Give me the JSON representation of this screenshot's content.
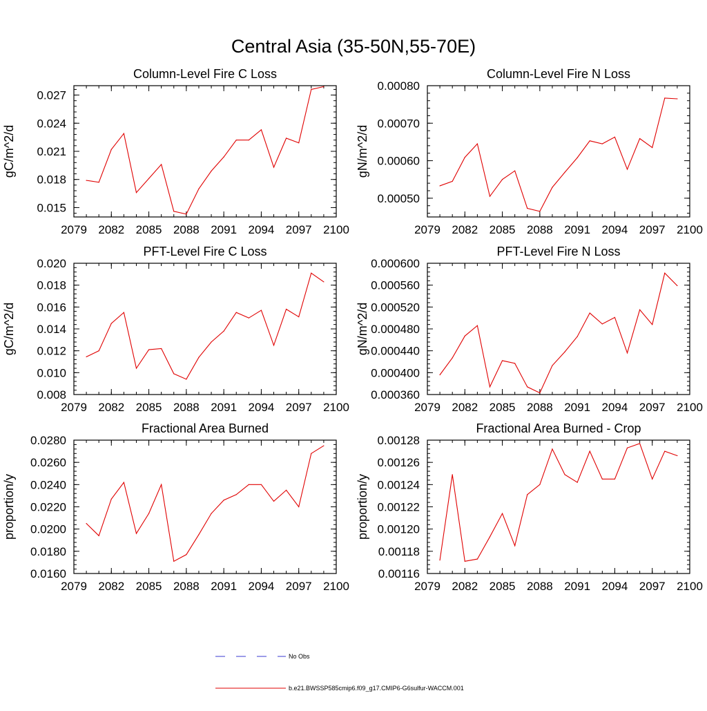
{
  "figure": {
    "title": "Central Asia (35-50N,55-70E)"
  },
  "legend": {
    "entries": [
      {
        "label": "No Obs",
        "color": "#3a3ad0",
        "dash": "dashed"
      },
      {
        "label": "b.e21.BWSSP585cmip6.f09_g17.CMIP6-G6sulfur-WACCM.001",
        "color": "#e00000",
        "dash": "solid"
      }
    ]
  },
  "chart_data": [
    {
      "type": "line",
      "title": "Column-Level Fire C Loss",
      "ylabel": "gC/m^2/d",
      "xlim": [
        2079,
        2100
      ],
      "ylim": [
        0.014,
        0.028
      ],
      "xticks": [
        "2079",
        "2082",
        "2085",
        "2088",
        "2091",
        "2094",
        "2097",
        "2100"
      ],
      "yticks": [
        "0.015",
        "0.018",
        "0.021",
        "0.024",
        "0.027"
      ],
      "x": [
        2080,
        2081,
        2082,
        2083,
        2084,
        2085,
        2086,
        2087,
        2088,
        2089,
        2090,
        2091,
        2092,
        2093,
        2094,
        2095,
        2096,
        2097,
        2098,
        2099
      ],
      "series": [
        {
          "color": "#e00000",
          "values": [
            0.0179,
            0.0177,
            0.0212,
            0.0229,
            0.0166,
            0.0181,
            0.0196,
            0.0146,
            0.0143,
            0.017,
            0.0189,
            0.0204,
            0.0222,
            0.0222,
            0.0233,
            0.0193,
            0.0224,
            0.0219,
            0.0276,
            0.0279
          ]
        }
      ]
    },
    {
      "type": "line",
      "title": "Column-Level Fire N Loss",
      "ylabel": "gN/m^2/d",
      "xlim": [
        2079,
        2100
      ],
      "ylim": [
        0.00045,
        0.0008
      ],
      "xticks": [
        "2079",
        "2082",
        "2085",
        "2088",
        "2091",
        "2094",
        "2097",
        "2100"
      ],
      "yticks": [
        "0.00050",
        "0.00060",
        "0.00070",
        "0.00080"
      ],
      "x": [
        2080,
        2081,
        2082,
        2083,
        2084,
        2085,
        2086,
        2087,
        2088,
        2089,
        2090,
        2091,
        2092,
        2093,
        2094,
        2095,
        2096,
        2097,
        2098,
        2099
      ],
      "series": [
        {
          "color": "#e00000",
          "values": [
            0.000533,
            0.000545,
            0.000609,
            0.000645,
            0.000505,
            0.00055,
            0.000573,
            0.000473,
            0.000465,
            0.000529,
            0.000569,
            0.000608,
            0.000653,
            0.000645,
            0.000663,
            0.000577,
            0.000659,
            0.000635,
            0.000767,
            0.000765
          ]
        }
      ]
    },
    {
      "type": "line",
      "title": "PFT-Level Fire C Loss",
      "ylabel": "gC/m^2/d",
      "xlim": [
        2079,
        2100
      ],
      "ylim": [
        0.008,
        0.02
      ],
      "xticks": [
        "2079",
        "2082",
        "2085",
        "2088",
        "2091",
        "2094",
        "2097",
        "2100"
      ],
      "yticks": [
        "0.008",
        "0.010",
        "0.012",
        "0.014",
        "0.016",
        "0.018",
        "0.020"
      ],
      "x": [
        2080,
        2081,
        2082,
        2083,
        2084,
        2085,
        2086,
        2087,
        2088,
        2089,
        2090,
        2091,
        2092,
        2093,
        2094,
        2095,
        2096,
        2097,
        2098,
        2099
      ],
      "series": [
        {
          "color": "#e00000",
          "values": [
            0.01145,
            0.012,
            0.0145,
            0.0155,
            0.0104,
            0.0121,
            0.0122,
            0.0099,
            0.0094,
            0.0114,
            0.0128,
            0.0138,
            0.0155,
            0.015,
            0.0157,
            0.0125,
            0.0158,
            0.0151,
            0.0191,
            0.0183
          ]
        }
      ]
    },
    {
      "type": "line",
      "title": "PFT-Level Fire N Loss",
      "ylabel": "gN/m^2/d",
      "xlim": [
        2079,
        2100
      ],
      "ylim": [
        0.00036,
        0.0006
      ],
      "xticks": [
        "2079",
        "2082",
        "2085",
        "2088",
        "2091",
        "2094",
        "2097",
        "2100"
      ],
      "yticks": [
        "0.000360",
        "0.000400",
        "0.000440",
        "0.000480",
        "0.000520",
        "0.000560",
        "0.000600"
      ],
      "x": [
        2080,
        2081,
        2082,
        2083,
        2084,
        2085,
        2086,
        2087,
        2088,
        2089,
        2090,
        2091,
        2092,
        2093,
        2094,
        2095,
        2096,
        2097,
        2098,
        2099
      ],
      "series": [
        {
          "color": "#e00000",
          "values": [
            0.000396,
            0.000427,
            0.000467,
            0.000486,
            0.000374,
            0.000422,
            0.000417,
            0.000374,
            0.000363,
            0.000413,
            0.000438,
            0.000466,
            0.000509,
            0.000489,
            0.000501,
            0.000436,
            0.000515,
            0.000488,
            0.000582,
            0.000559
          ]
        }
      ]
    },
    {
      "type": "line",
      "title": "Fractional Area Burned",
      "ylabel": "proportion/y",
      "xlim": [
        2079,
        2100
      ],
      "ylim": [
        0.016,
        0.028
      ],
      "xticks": [
        "2079",
        "2082",
        "2085",
        "2088",
        "2091",
        "2094",
        "2097",
        "2100"
      ],
      "yticks": [
        "0.0160",
        "0.0180",
        "0.0200",
        "0.0220",
        "0.0240",
        "0.0260",
        "0.0280"
      ],
      "x": [
        2080,
        2081,
        2082,
        2083,
        2084,
        2085,
        2086,
        2087,
        2088,
        2089,
        2090,
        2091,
        2092,
        2093,
        2094,
        2095,
        2096,
        2097,
        2098,
        2099
      ],
      "series": [
        {
          "color": "#e00000",
          "values": [
            0.0205,
            0.0194,
            0.0227,
            0.0242,
            0.0196,
            0.0214,
            0.024,
            0.0171,
            0.0177,
            0.0195,
            0.0214,
            0.0226,
            0.0231,
            0.024,
            0.024,
            0.0225,
            0.0235,
            0.022,
            0.0268,
            0.0275
          ]
        }
      ]
    },
    {
      "type": "line",
      "title": "Fractional Area Burned - Crop",
      "ylabel": "proportion/y",
      "xlim": [
        2079,
        2100
      ],
      "ylim": [
        0.00116,
        0.00128
      ],
      "xticks": [
        "2079",
        "2082",
        "2085",
        "2088",
        "2091",
        "2094",
        "2097",
        "2100"
      ],
      "yticks": [
        "0.00116",
        "0.00118",
        "0.00120",
        "0.00122",
        "0.00124",
        "0.00126",
        "0.00128"
      ],
      "x": [
        2080,
        2081,
        2082,
        2083,
        2084,
        2085,
        2086,
        2087,
        2088,
        2089,
        2090,
        2091,
        2092,
        2093,
        2094,
        2095,
        2096,
        2097,
        2098,
        2099
      ],
      "series": [
        {
          "color": "#e00000",
          "values": [
            0.001172,
            0.001249,
            0.001171,
            0.001173,
            0.001193,
            0.001214,
            0.001185,
            0.001231,
            0.00124,
            0.001272,
            0.001249,
            0.001242,
            0.00127,
            0.001245,
            0.001245,
            0.001273,
            0.001277,
            0.001245,
            0.00127,
            0.001266
          ]
        }
      ]
    }
  ]
}
